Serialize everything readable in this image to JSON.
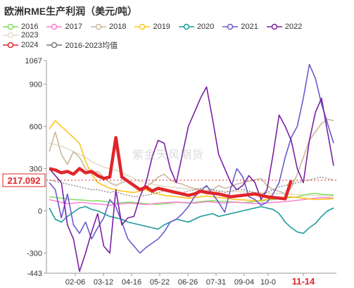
{
  "chart_data": {
    "type": "line",
    "title": "欧洲RME生产利润（美元/吨）",
    "xlabel": "",
    "ylabel": "",
    "ylim": [
      -443,
      1067
    ],
    "yticks": [
      -443,
      -300,
      0,
      300,
      600,
      900,
      1067
    ],
    "xticks": [
      "02-06",
      "03-12",
      "04-16",
      "05-22",
      "06-26",
      "07-31",
      "09-04",
      "10-0",
      "11-14"
    ],
    "xtick_highlight": "11-14",
    "highlight_value_label": "217.092",
    "grid": false,
    "legend_position": "top",
    "watermark": "紫金天风期货",
    "series": [
      {
        "name": "2016",
        "color": "#7ddc5a",
        "width": 1.4,
        "values": [
          100,
          95,
          90,
          85,
          80,
          78,
          75,
          70,
          72,
          68,
          60,
          55,
          58,
          62,
          60,
          55,
          50,
          48,
          45,
          50,
          55,
          60,
          58,
          55,
          60,
          65,
          70,
          72,
          68,
          66,
          64,
          60,
          58,
          62,
          66,
          70,
          75,
          80,
          85,
          90,
          95,
          100,
          110,
          120,
          125,
          118,
          115,
          112
        ]
      },
      {
        "name": "2017",
        "color": "#ff7ad1",
        "width": 1.4,
        "values": [
          80,
          70,
          60,
          50,
          55,
          60,
          58,
          52,
          48,
          45,
          40,
          45,
          50,
          55,
          52,
          48,
          45,
          50,
          55,
          58,
          60,
          62,
          60,
          58,
          55,
          60,
          65,
          62,
          58,
          55,
          60,
          62,
          58,
          55,
          52,
          55,
          58,
          60,
          62,
          65,
          70,
          75,
          80,
          85,
          90,
          95,
          92,
          90
        ]
      },
      {
        "name": "2018",
        "color": "#c9b99a",
        "width": 1.6,
        "values": [
          420,
          560,
          400,
          330,
          420,
          380,
          300,
          260,
          280,
          240,
          200,
          180,
          200,
          220,
          180,
          160,
          170,
          200,
          240,
          260,
          220,
          200,
          190,
          170,
          160,
          150,
          140,
          150,
          180,
          160,
          170,
          190,
          200,
          210,
          220,
          230,
          180,
          150,
          140,
          120,
          160,
          260,
          380,
          500,
          560,
          620,
          650,
          640
        ]
      },
      {
        "name": "2019",
        "color": "#ffc31a",
        "width": 1.6,
        "values": [
          580,
          640,
          600,
          560,
          520,
          480,
          350,
          260,
          200,
          180,
          160,
          150,
          140,
          135,
          130,
          140,
          150,
          130,
          120,
          110,
          105,
          100,
          95,
          90,
          95,
          100,
          105,
          100,
          95,
          90,
          85,
          80,
          78,
          75,
          70,
          75,
          80,
          85,
          90,
          95,
          100,
          95,
          90,
          85,
          80,
          82,
          84,
          86
        ]
      },
      {
        "name": "2020",
        "color": "#1a9a9a",
        "width": 1.6,
        "values": [
          20,
          -60,
          -80,
          -40,
          -10,
          20,
          30,
          10,
          0,
          -20,
          -40,
          -50,
          -60,
          -80,
          -90,
          -100,
          -110,
          -120,
          -130,
          -100,
          -80,
          -60,
          -70,
          -80,
          -60,
          -40,
          -30,
          -20,
          -40,
          -30,
          -20,
          -10,
          0,
          10,
          20,
          30,
          20,
          10,
          -20,
          -80,
          -120,
          -150,
          -160,
          -120,
          -90,
          -40,
          0,
          20
        ]
      },
      {
        "name": "2021",
        "color": "#6a5acd",
        "width": 1.6,
        "values": [
          200,
          150,
          -50,
          120,
          -100,
          -160,
          -80,
          -200,
          -120,
          -50,
          80,
          30,
          -80,
          -200,
          -250,
          -300,
          -260,
          -230,
          -200,
          -150,
          -80,
          -60,
          -20,
          30,
          100,
          140,
          180,
          120,
          60,
          -10,
          160,
          300,
          240,
          100,
          80,
          40,
          60,
          120,
          200,
          380,
          520,
          600,
          800,
          1040,
          940,
          760,
          620,
          480
        ]
      },
      {
        "name": "2022",
        "color": "#7b1fa2",
        "width": 1.6,
        "values": [
          300,
          250,
          200,
          -100,
          -200,
          -430,
          -300,
          -150,
          -20,
          -250,
          -300,
          150,
          -100,
          -50,
          -40,
          100,
          200,
          380,
          500,
          480,
          300,
          200,
          400,
          600,
          700,
          800,
          880,
          650,
          400,
          300,
          200,
          150,
          180,
          250,
          200,
          80,
          150,
          400,
          680,
          600,
          500,
          300,
          200,
          500,
          700,
          800,
          560,
          320
        ]
      },
      {
        "name": "2023",
        "color": "#e3dcc8",
        "width": 1.6,
        "values": [
          480,
          470,
          460,
          440,
          420,
          400,
          380,
          350,
          330,
          310,
          300,
          290,
          270,
          250,
          230,
          210,
          200,
          190,
          180,
          175,
          170,
          165,
          160,
          155,
          150,
          148,
          146,
          144,
          142,
          140,
          138,
          136,
          134,
          132,
          130,
          128,
          126,
          124,
          122,
          120,
          118,
          116,
          114,
          112,
          110,
          108,
          106,
          104
        ]
      },
      {
        "name": "2024",
        "color": "#e0252a",
        "width": 4.5,
        "values": [
          300,
          290,
          270,
          280,
          260,
          300,
          270,
          280,
          250,
          230,
          240,
          520,
          240,
          210,
          180,
          150,
          170,
          140,
          160,
          150,
          140,
          130,
          120,
          110,
          120,
          140,
          130,
          125,
          120,
          110,
          100,
          105,
          110,
          115,
          120,
          110,
          100,
          95,
          90,
          85,
          217.092,
          null,
          null,
          null,
          null,
          null,
          null,
          null
        ]
      },
      {
        "name": "2016-2023均值",
        "color": "#777777",
        "width": 1.2,
        "dash": "2,2",
        "values": [
          220,
          210,
          200,
          190,
          180,
          170,
          160,
          150,
          150,
          140,
          130,
          140,
          120,
          110,
          100,
          105,
          110,
          120,
          130,
          140,
          130,
          120,
          130,
          140,
          150,
          160,
          170,
          150,
          140,
          130,
          140,
          150,
          150,
          140,
          130,
          120,
          130,
          150,
          170,
          180,
          190,
          200,
          210,
          220,
          230,
          240,
          230,
          220
        ]
      }
    ]
  }
}
